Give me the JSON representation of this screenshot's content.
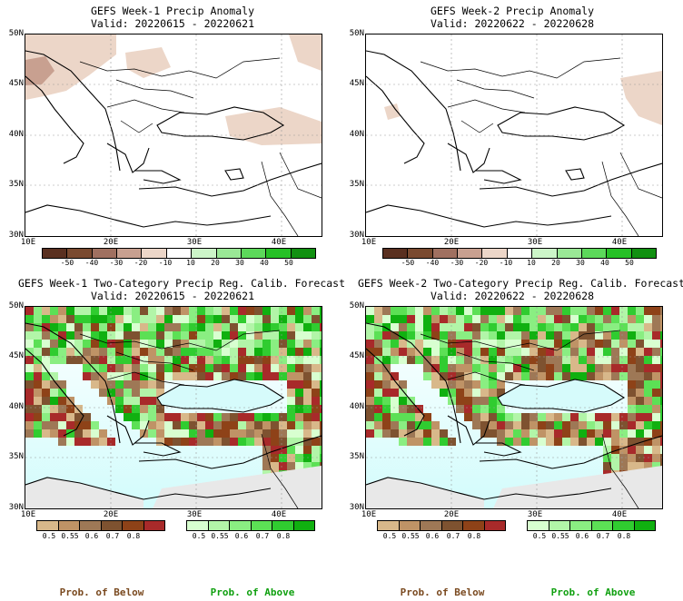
{
  "panels": [
    {
      "title": "GEFS Week-1 Precip Anomaly",
      "valid": "Valid: 20220615 - 20220621"
    },
    {
      "title": "GEFS Week-2 Precip Anomaly",
      "valid": "Valid: 20220622 - 20220628"
    },
    {
      "title": "GEFS Week-1 Two-Category Precip Reg. Calib. Forecast",
      "valid": "Valid: 20220615 - 20220621"
    },
    {
      "title": "GEFS Week-2 Two-Category Precip Reg. Calib. Forecast",
      "valid": "Valid: 20220622 - 20220628"
    }
  ],
  "lat_labels": [
    "50N",
    "45N",
    "40N",
    "35N",
    "30N"
  ],
  "lon_labels": [
    "10E",
    "20E",
    "30E",
    "40E"
  ],
  "anomaly_colorbar": {
    "ticks": [
      "-50",
      "-40",
      "-30",
      "-20",
      "-10",
      "10",
      "20",
      "30",
      "40",
      "50"
    ],
    "colors": [
      "#5a3020",
      "#7a4a30",
      "#a07060",
      "#c8a090",
      "#ecd6c8",
      "#ffffff",
      "#ccf5c8",
      "#9ae896",
      "#5cd85a",
      "#26c026",
      "#119011"
    ]
  },
  "prob_below": {
    "ticks": [
      "0.5",
      "0.55",
      "0.6",
      "0.7",
      "0.8"
    ],
    "colors": [
      "#d8b88a",
      "#bf9366",
      "#9e7856",
      "#7e5230",
      "#8e4218",
      "#a82a2a"
    ],
    "label": "Prob. of Below"
  },
  "prob_above": {
    "ticks": [
      "0.5",
      "0.55",
      "0.6",
      "0.7",
      "0.8"
    ],
    "colors": [
      "#d8ffd0",
      "#b2f5a8",
      "#8aee82",
      "#5ce055",
      "#30cc30",
      "#10b010"
    ],
    "label": "Prob. of Above"
  },
  "map_colors": {
    "sea_top": "#ffffff",
    "sea_bottom": "#d2fcfc",
    "dry_land": "#e8e8e8"
  }
}
